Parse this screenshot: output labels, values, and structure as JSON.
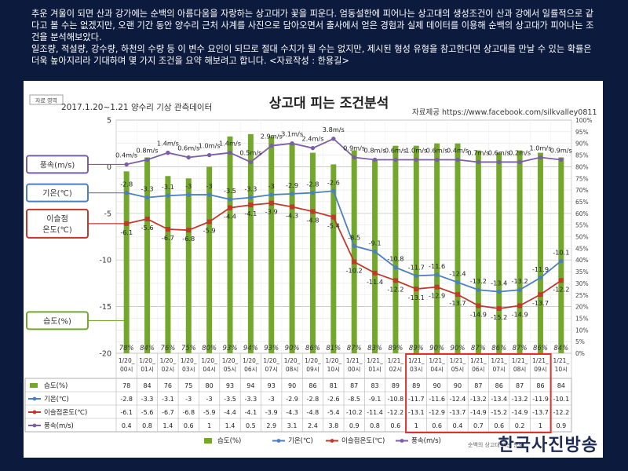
{
  "intro": {
    "p1": "추운 겨울이 되면 산과 강가에는 순백의 아름다움을 자랑하는 상고대가 꽃을 피운다. 엄동설한에 피어나는 상고대의 생성조건이 산과 강에서 일률적으로 같다고 볼 수는 없겠지만, 오랜 기간 동안 양수리 근처 사계를 사진으로 담아오면서 출사에서 얻은 경험과 실제 데이터를 이용해 순백의 상고대가 피어나는 조건을 분석해보았다.",
    "p2": "일조량, 적설량, 강수량, 하천의 수량 등 이 변수 요인이 되므로 절대 수치가 될 수는 없지만, 제시된 형성 유형을 참고한다면 상고대를 만날 수 있는 확률은 더욱 높아지리라 기대하며 몇 가지 조건을 요약 해보려고 합니다.  <자료작성 : 한용길>"
  },
  "watermark": "한국사진방송",
  "chart_data": {
    "type": "bar+line",
    "title": "상고대 피는 조건분석",
    "subtitle": "2017.1.20~1.21 양수리 기상 관측데이터",
    "source": "자료제공  https://www.facebook.com/silkvalley0811",
    "corner_label": "자료 영역",
    "footer_note": "순백의 상고대 피는 분석",
    "categories": [
      [
        "1/20_",
        "00시"
      ],
      [
        "1/20_",
        "01시"
      ],
      [
        "1/20_",
        "02시"
      ],
      [
        "1/20_",
        "03시"
      ],
      [
        "1/20_",
        "04시"
      ],
      [
        "1/20_",
        "05시"
      ],
      [
        "1/20_",
        "06시"
      ],
      [
        "1/20_",
        "07시"
      ],
      [
        "1/20_",
        "08시"
      ],
      [
        "1/20_",
        "09시"
      ],
      [
        "1/20_",
        "10시"
      ],
      [
        "1/21_",
        "00시"
      ],
      [
        "1/21_",
        "01시"
      ],
      [
        "1/21_",
        "02시"
      ],
      [
        "1/21_",
        "03시"
      ],
      [
        "1/21_",
        "04시"
      ],
      [
        "1/21_",
        "05시"
      ],
      [
        "1/21_",
        "06시"
      ],
      [
        "1/21_",
        "07시"
      ],
      [
        "1/21_",
        "08시"
      ],
      [
        "1/21_",
        "09시"
      ],
      [
        "1/21_",
        "10시"
      ]
    ],
    "left_axis": {
      "min": -20,
      "max": 5,
      "ticks": [
        5,
        0,
        -5,
        -10,
        -15,
        -20
      ]
    },
    "right_axis": {
      "min": 0,
      "max": 100,
      "step": 5,
      "unit": "%"
    },
    "series": [
      {
        "name": "습도(%)",
        "type": "bar",
        "axis": "right",
        "color": "#74a82c",
        "values": [
          78,
          84,
          76,
          75,
          80,
          93,
          94,
          93,
          90,
          86,
          81,
          87,
          83,
          89,
          89,
          90,
          90,
          87,
          86,
          87,
          86,
          84
        ],
        "labels": [
          "78%",
          "84%",
          "76%",
          "75%",
          "80%",
          "93%",
          "94%",
          "93%",
          "90%",
          "86%",
          "81%",
          "87%",
          "83%",
          "89%",
          "89%",
          "90%",
          "90%",
          "87%",
          "86%",
          "87%",
          "86%",
          "84%"
        ]
      },
      {
        "name": "기온(℃)",
        "type": "line",
        "axis": "left",
        "color": "#4a7fc1",
        "values": [
          -2.8,
          -3.3,
          -3.1,
          -3,
          -3,
          -3.5,
          -3.3,
          -3,
          -2.9,
          -2.8,
          -2.6,
          -8.5,
          -9.1,
          -10.8,
          -11.7,
          -11.6,
          -12.4,
          -13.2,
          -13.4,
          -13.2,
          -11.9,
          -10.1
        ],
        "labels": [
          "-2.8",
          "-3.3",
          "-3.1",
          "-3",
          "-3",
          "-3.5",
          "-3.3",
          "-3",
          "-2.9",
          "-2.8",
          "-2.6",
          "-8.5",
          "-9.1",
          "-10.8",
          "-11.7",
          "-11.6",
          "-12.4",
          "-13.2",
          "-13.4",
          "-13.2",
          "-11.9",
          "-10.1"
        ]
      },
      {
        "name": "이슬점온도(℃)",
        "type": "line",
        "axis": "left",
        "color": "#c0392b",
        "values": [
          -6.1,
          -5.6,
          -6.7,
          -6.8,
          -5.9,
          -4.4,
          -4.1,
          -3.9,
          -4.3,
          -4.8,
          -5.4,
          -10.2,
          -11.4,
          -12.2,
          -13.1,
          -12.9,
          -13.7,
          -14.9,
          -15.2,
          -14.9,
          -13.7,
          -12.2
        ],
        "labels": [
          "-6.1",
          "-5.6",
          "-6.7",
          "-6.8",
          "-5.9",
          "-4.4",
          "-4.1",
          "-3.9",
          "-4.3",
          "-4.8",
          "-5.4",
          "-10.2",
          "-11.4",
          "-12.2",
          "-13.1",
          "-12.9",
          "-13.7",
          "-14.9",
          "-15.2",
          "-14.9",
          "-13.7",
          "-12.2"
        ]
      },
      {
        "name": "풍속(m/s)",
        "type": "line",
        "axis": "right",
        "color": "#7b5ea7",
        "values": [
          0.4,
          0.8,
          1.4,
          0.6,
          1,
          1.4,
          0.5,
          2.9,
          3.1,
          2.4,
          3.8,
          0.9,
          0.8,
          0.6,
          1,
          0.6,
          0.4,
          0.7,
          0.6,
          0.2,
          1,
          0.9
        ],
        "point_percent": [
          81,
          83,
          86,
          84,
          85,
          86,
          82,
          89,
          90,
          88,
          92,
          84,
          83,
          83,
          83,
          83,
          83,
          82,
          82,
          82,
          84,
          83
        ],
        "labels": [
          "0.4m/s",
          "0.8m/s",
          "1.4m/s",
          "0.6m/s",
          "1.0m/s",
          "1.4m/s",
          "0.5m/s",
          "2.9m/s",
          "3.1m/s",
          "2.4m/s",
          "3.8m/s",
          "0.9m/s",
          "0.8m/s",
          "0.6m/s",
          "1.0m/s",
          "0.6m/s",
          "0.4m/s",
          "0.7m/s",
          "0.6m/s",
          "0.2m/s",
          "1.0m/s",
          "0.9m/s"
        ]
      }
    ],
    "callouts": [
      "풍속(m/s)",
      "기온(℃)",
      "이슬점\n온도(℃)",
      "습도(%)"
    ],
    "table": {
      "rows": [
        {
          "name": "습도(%)",
          "values": [
            "78",
            "84",
            "76",
            "75",
            "80",
            "93",
            "94",
            "93",
            "90",
            "86",
            "81",
            "87",
            "83",
            "89",
            "89",
            "90",
            "90",
            "87",
            "86",
            "87",
            "86",
            "84"
          ]
        },
        {
          "name": "기온(℃)",
          "values": [
            "-2.8",
            "-3.3",
            "-3.1",
            "-3",
            "-3",
            "-3.5",
            "-3.3",
            "-3",
            "-2.9",
            "-2.8",
            "-2.6",
            "-8.5",
            "-9.1",
            "-10.8",
            "-11.7",
            "-11.6",
            "-12.4",
            "-13.2",
            "-13.4",
            "-13.2",
            "-11.9",
            "-10.1"
          ]
        },
        {
          "name": "이슬점온도(℃)",
          "values": [
            "-6.1",
            "-5.6",
            "-6.7",
            "-6.8",
            "-5.9",
            "-4.4",
            "-4.1",
            "-3.9",
            "-4.3",
            "-4.8",
            "-5.4",
            "-10.2",
            "-11.4",
            "-12.2",
            "-13.1",
            "-12.9",
            "-13.7",
            "-14.9",
            "-15.2",
            "-14.9",
            "-13.7",
            "-12.2"
          ]
        },
        {
          "name": "풍속(m/s)",
          "values": [
            "0.4",
            "0.8",
            "1.4",
            "0.6",
            "1",
            "1.4",
            "0.5",
            "2.9",
            "3.1",
            "2.4",
            "3.8",
            "0.9",
            "0.8",
            "0.6",
            "1",
            "0.6",
            "0.4",
            "0.7",
            "0.6",
            "0.2",
            "1",
            "0.9"
          ]
        }
      ]
    },
    "legend": [
      "습도(%)",
      "기온(℃)",
      "이슬점온도(℃)",
      "풍속(m/s)"
    ],
    "highlight": {
      "from_index": 14,
      "to_index": 20,
      "color": "#d9332b"
    },
    "grid": true
  }
}
